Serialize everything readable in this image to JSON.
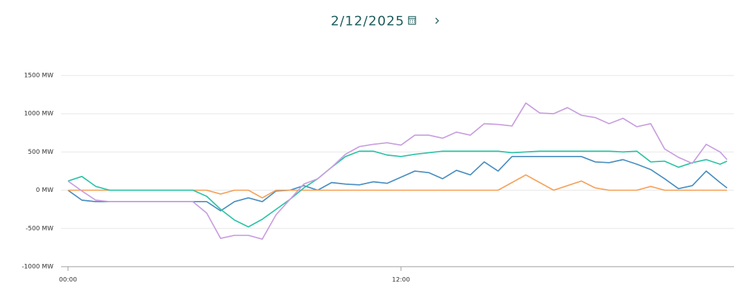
{
  "header": {
    "date": "2/12/2025"
  },
  "chart_data": {
    "type": "line",
    "x": [
      0,
      0.5,
      1,
      1.5,
      2,
      2.5,
      3,
      3.5,
      4,
      4.5,
      5,
      5.5,
      6,
      6.5,
      7,
      7.5,
      8,
      8.5,
      9,
      9.5,
      10,
      10.5,
      11,
      11.5,
      12,
      12.5,
      13,
      13.5,
      14,
      14.5,
      15,
      15.5,
      16,
      16.5,
      17,
      17.5,
      18,
      18.5,
      19,
      19.5,
      20,
      20.5,
      21,
      21.5,
      22,
      22.5,
      23,
      23.5,
      23.75
    ],
    "series": [
      {
        "color": "#4b8fc0",
        "values": [
          0,
          -130,
          -150,
          -150,
          -150,
          -150,
          -150,
          -150,
          -150,
          -150,
          -150,
          -270,
          -150,
          -100,
          -150,
          -10,
          0,
          60,
          0,
          100,
          80,
          70,
          110,
          90,
          170,
          250,
          230,
          150,
          260,
          200,
          370,
          250,
          440,
          440,
          440,
          440,
          440,
          440,
          370,
          360,
          400,
          340,
          270,
          150,
          20,
          60,
          250,
          100,
          30
        ]
      },
      {
        "color": "#f6a35c",
        "values": [
          0,
          0,
          0,
          0,
          0,
          0,
          0,
          0,
          0,
          0,
          0,
          -50,
          0,
          0,
          -100,
          0,
          0,
          0,
          0,
          0,
          0,
          0,
          0,
          0,
          0,
          0,
          0,
          0,
          0,
          0,
          0,
          0,
          100,
          200,
          100,
          0,
          60,
          120,
          30,
          0,
          0,
          0,
          50,
          0,
          0,
          0,
          0,
          0,
          0
        ]
      },
      {
        "color": "#2ec4a6",
        "values": [
          120,
          180,
          50,
          0,
          0,
          0,
          0,
          0,
          0,
          0,
          -80,
          -250,
          -390,
          -480,
          -380,
          -250,
          -120,
          30,
          150,
          300,
          440,
          510,
          510,
          460,
          440,
          470,
          490,
          510,
          510,
          510,
          510,
          510,
          490,
          500,
          510,
          510,
          510,
          510,
          510,
          510,
          500,
          510,
          370,
          380,
          300,
          360,
          400,
          340,
          380
        ]
      },
      {
        "color": "#c99fe0",
        "values": [
          120,
          -10,
          -130,
          -150,
          -150,
          -150,
          -150,
          -150,
          -150,
          -150,
          -300,
          -630,
          -590,
          -590,
          -640,
          -320,
          -120,
          80,
          150,
          300,
          470,
          570,
          600,
          620,
          590,
          720,
          720,
          680,
          760,
          720,
          870,
          860,
          840,
          1140,
          1010,
          1000,
          1080,
          980,
          950,
          870,
          940,
          830,
          870,
          540,
          430,
          350,
          600,
          500,
          400
        ]
      }
    ],
    "xlim": [
      0,
      24
    ],
    "xticks": [
      {
        "value": 0,
        "label": "00:00"
      },
      {
        "value": 12,
        "label": "12:00"
      }
    ],
    "ylim": [
      -1000,
      1500
    ],
    "yticks": [
      {
        "value": -1000,
        "label": "-1000 MW"
      },
      {
        "value": -500,
        "label": "-500 MW"
      },
      {
        "value": 0,
        "label": "0 MW"
      },
      {
        "value": 500,
        "label": "500 MW"
      },
      {
        "value": 1000,
        "label": "1000 MW"
      },
      {
        "value": 1500,
        "label": "1500 MW"
      }
    ],
    "grid": true
  }
}
